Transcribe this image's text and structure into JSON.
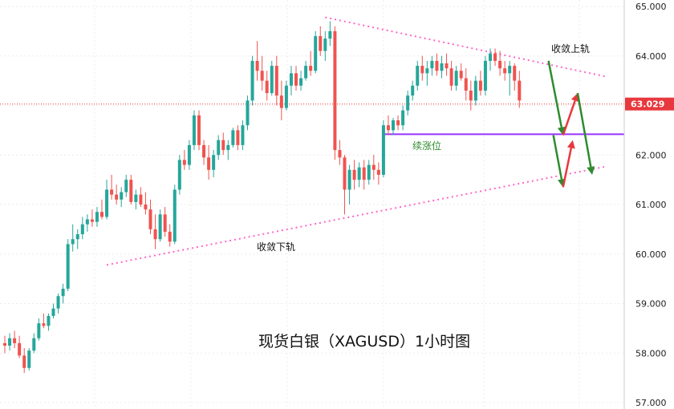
{
  "chart_data": {
    "type": "candlestick",
    "title": "现货白银（XAGUSD）1小时图",
    "ylim": [
      57.0,
      65.0
    ],
    "y_ticks": [
      "65.000",
      "64.000",
      "63.000",
      "62.000",
      "61.000",
      "60.000",
      "59.000",
      "58.000",
      "57.000"
    ],
    "y_tick_values": [
      65,
      64,
      63,
      62,
      61,
      60,
      59,
      58,
      57
    ],
    "current_price": 63.029,
    "current_price_label": "63.029",
    "colors": {
      "up": "#26a69a",
      "down": "#ef5350",
      "trendline": "#ff66c4",
      "support_line": "#9933ff",
      "arrow_up": "#e8383d",
      "arrow_down": "#2e8b2e",
      "price_tag": "#e8383d"
    },
    "annotations": {
      "upper_rail": "收敛上轨",
      "lower_rail": "收敛下轨",
      "continuation": "续涨位"
    },
    "trendlines": [
      {
        "name": "upper",
        "from": {
          "i": 66,
          "price": 64.78
        },
        "to": {
          "i": 124,
          "price": 63.58
        }
      },
      {
        "name": "lower",
        "from": {
          "i": 21,
          "price": 59.78
        },
        "to": {
          "i": 124,
          "price": 61.77
        }
      }
    ],
    "support_level": 62.42,
    "support_from_i": 78,
    "candles": [
      {
        "o": 58.2,
        "h": 58.35,
        "l": 58.0,
        "c": 58.15
      },
      {
        "o": 58.15,
        "h": 58.4,
        "l": 58.05,
        "c": 58.3
      },
      {
        "o": 58.3,
        "h": 58.45,
        "l": 58.1,
        "c": 58.2
      },
      {
        "o": 58.2,
        "h": 58.35,
        "l": 57.9,
        "c": 57.95
      },
      {
        "o": 57.95,
        "h": 58.1,
        "l": 57.6,
        "c": 57.7
      },
      {
        "o": 57.7,
        "h": 58.1,
        "l": 57.65,
        "c": 58.05
      },
      {
        "o": 58.05,
        "h": 58.4,
        "l": 58.0,
        "c": 58.3
      },
      {
        "o": 58.3,
        "h": 58.7,
        "l": 58.25,
        "c": 58.6
      },
      {
        "o": 58.6,
        "h": 58.8,
        "l": 58.5,
        "c": 58.55
      },
      {
        "o": 58.55,
        "h": 58.8,
        "l": 58.45,
        "c": 58.75
      },
      {
        "o": 58.75,
        "h": 59.0,
        "l": 58.7,
        "c": 58.9
      },
      {
        "o": 58.9,
        "h": 59.2,
        "l": 58.8,
        "c": 59.15
      },
      {
        "o": 59.15,
        "h": 59.4,
        "l": 59.0,
        "c": 59.3
      },
      {
        "o": 59.3,
        "h": 60.3,
        "l": 59.25,
        "c": 60.2
      },
      {
        "o": 60.2,
        "h": 60.6,
        "l": 60.05,
        "c": 60.3
      },
      {
        "o": 60.3,
        "h": 60.5,
        "l": 60.1,
        "c": 60.4
      },
      {
        "o": 60.4,
        "h": 60.75,
        "l": 60.3,
        "c": 60.6
      },
      {
        "o": 60.6,
        "h": 60.8,
        "l": 60.45,
        "c": 60.7
      },
      {
        "o": 60.7,
        "h": 60.9,
        "l": 60.55,
        "c": 60.65
      },
      {
        "o": 60.65,
        "h": 60.95,
        "l": 60.55,
        "c": 60.85
      },
      {
        "o": 60.85,
        "h": 61.1,
        "l": 60.7,
        "c": 60.75
      },
      {
        "o": 60.75,
        "h": 61.5,
        "l": 60.7,
        "c": 61.3
      },
      {
        "o": 61.3,
        "h": 61.6,
        "l": 61.1,
        "c": 61.2
      },
      {
        "o": 61.2,
        "h": 61.4,
        "l": 61.0,
        "c": 61.1
      },
      {
        "o": 61.1,
        "h": 61.35,
        "l": 60.95,
        "c": 61.25
      },
      {
        "o": 61.25,
        "h": 61.6,
        "l": 61.15,
        "c": 61.5
      },
      {
        "o": 61.5,
        "h": 61.6,
        "l": 61.0,
        "c": 61.05
      },
      {
        "o": 61.05,
        "h": 61.3,
        "l": 60.9,
        "c": 61.2
      },
      {
        "o": 61.2,
        "h": 61.35,
        "l": 60.95,
        "c": 61.0
      },
      {
        "o": 61.0,
        "h": 61.25,
        "l": 60.8,
        "c": 60.9
      },
      {
        "o": 60.9,
        "h": 61.1,
        "l": 60.4,
        "c": 60.5
      },
      {
        "o": 60.5,
        "h": 60.8,
        "l": 60.1,
        "c": 60.3
      },
      {
        "o": 60.3,
        "h": 60.9,
        "l": 60.25,
        "c": 60.8
      },
      {
        "o": 60.8,
        "h": 60.95,
        "l": 60.35,
        "c": 60.45
      },
      {
        "o": 60.45,
        "h": 60.6,
        "l": 60.15,
        "c": 60.25
      },
      {
        "o": 60.25,
        "h": 61.4,
        "l": 60.2,
        "c": 61.3
      },
      {
        "o": 61.3,
        "h": 62.0,
        "l": 61.2,
        "c": 61.9
      },
      {
        "o": 61.9,
        "h": 62.1,
        "l": 61.7,
        "c": 61.8
      },
      {
        "o": 61.8,
        "h": 62.3,
        "l": 61.7,
        "c": 62.2
      },
      {
        "o": 62.2,
        "h": 62.9,
        "l": 62.1,
        "c": 62.8
      },
      {
        "o": 62.8,
        "h": 62.9,
        "l": 62.1,
        "c": 62.2
      },
      {
        "o": 62.2,
        "h": 62.3,
        "l": 61.8,
        "c": 61.95
      },
      {
        "o": 61.95,
        "h": 62.2,
        "l": 61.5,
        "c": 61.7
      },
      {
        "o": 61.7,
        "h": 62.1,
        "l": 61.55,
        "c": 62.0
      },
      {
        "o": 62.0,
        "h": 62.4,
        "l": 61.9,
        "c": 62.3
      },
      {
        "o": 62.3,
        "h": 62.45,
        "l": 62.0,
        "c": 62.1
      },
      {
        "o": 62.1,
        "h": 62.3,
        "l": 61.9,
        "c": 62.2
      },
      {
        "o": 62.2,
        "h": 62.55,
        "l": 62.15,
        "c": 62.5
      },
      {
        "o": 62.5,
        "h": 62.6,
        "l": 62.1,
        "c": 62.2
      },
      {
        "o": 62.2,
        "h": 62.7,
        "l": 62.1,
        "c": 62.6
      },
      {
        "o": 62.6,
        "h": 63.2,
        "l": 62.5,
        "c": 63.1
      },
      {
        "o": 63.1,
        "h": 64.0,
        "l": 63.0,
        "c": 63.9
      },
      {
        "o": 63.9,
        "h": 64.3,
        "l": 63.5,
        "c": 63.7
      },
      {
        "o": 63.7,
        "h": 64.0,
        "l": 63.3,
        "c": 63.5
      },
      {
        "o": 63.5,
        "h": 63.7,
        "l": 63.1,
        "c": 63.25
      },
      {
        "o": 63.25,
        "h": 63.9,
        "l": 63.2,
        "c": 63.8
      },
      {
        "o": 63.8,
        "h": 64.0,
        "l": 63.0,
        "c": 63.2
      },
      {
        "o": 63.2,
        "h": 63.5,
        "l": 62.7,
        "c": 62.95
      },
      {
        "o": 62.95,
        "h": 63.5,
        "l": 62.9,
        "c": 63.4
      },
      {
        "o": 63.4,
        "h": 63.8,
        "l": 63.2,
        "c": 63.65
      },
      {
        "o": 63.65,
        "h": 63.8,
        "l": 63.3,
        "c": 63.4
      },
      {
        "o": 63.4,
        "h": 63.7,
        "l": 63.3,
        "c": 63.55
      },
      {
        "o": 63.55,
        "h": 63.9,
        "l": 63.5,
        "c": 63.8
      },
      {
        "o": 63.8,
        "h": 64.1,
        "l": 63.6,
        "c": 63.7
      },
      {
        "o": 63.7,
        "h": 64.5,
        "l": 63.65,
        "c": 64.4
      },
      {
        "o": 64.4,
        "h": 64.6,
        "l": 64.0,
        "c": 64.1
      },
      {
        "o": 64.1,
        "h": 64.5,
        "l": 63.9,
        "c": 64.35
      },
      {
        "o": 64.35,
        "h": 64.7,
        "l": 64.2,
        "c": 64.5
      },
      {
        "o": 64.5,
        "h": 64.6,
        "l": 61.9,
        "c": 62.1
      },
      {
        "o": 62.1,
        "h": 62.3,
        "l": 61.8,
        "c": 61.95
      },
      {
        "o": 61.95,
        "h": 62.0,
        "l": 60.8,
        "c": 61.3
      },
      {
        "o": 61.3,
        "h": 61.8,
        "l": 61.0,
        "c": 61.7
      },
      {
        "o": 61.7,
        "h": 61.9,
        "l": 61.3,
        "c": 61.5
      },
      {
        "o": 61.5,
        "h": 61.85,
        "l": 61.35,
        "c": 61.75
      },
      {
        "o": 61.75,
        "h": 61.9,
        "l": 61.3,
        "c": 61.5
      },
      {
        "o": 61.5,
        "h": 61.9,
        "l": 61.4,
        "c": 61.8
      },
      {
        "o": 61.8,
        "h": 62.0,
        "l": 61.5,
        "c": 61.7
      },
      {
        "o": 61.7,
        "h": 61.85,
        "l": 61.4,
        "c": 61.6
      },
      {
        "o": 61.6,
        "h": 62.7,
        "l": 61.55,
        "c": 62.6
      },
      {
        "o": 62.6,
        "h": 62.8,
        "l": 62.4,
        "c": 62.5
      },
      {
        "o": 62.5,
        "h": 62.75,
        "l": 62.4,
        "c": 62.7
      },
      {
        "o": 62.7,
        "h": 62.8,
        "l": 62.5,
        "c": 62.6
      },
      {
        "o": 62.6,
        "h": 63.0,
        "l": 62.5,
        "c": 62.9
      },
      {
        "o": 62.9,
        "h": 63.3,
        "l": 62.8,
        "c": 63.2
      },
      {
        "o": 63.2,
        "h": 63.5,
        "l": 63.1,
        "c": 63.4
      },
      {
        "o": 63.4,
        "h": 63.9,
        "l": 63.3,
        "c": 63.8
      },
      {
        "o": 63.8,
        "h": 64.0,
        "l": 63.5,
        "c": 63.65
      },
      {
        "o": 63.65,
        "h": 63.9,
        "l": 63.4,
        "c": 63.75
      },
      {
        "o": 63.75,
        "h": 64.0,
        "l": 63.6,
        "c": 63.9
      },
      {
        "o": 63.9,
        "h": 64.05,
        "l": 63.6,
        "c": 63.7
      },
      {
        "o": 63.7,
        "h": 64.0,
        "l": 63.55,
        "c": 63.85
      },
      {
        "o": 63.85,
        "h": 64.05,
        "l": 63.6,
        "c": 63.75
      },
      {
        "o": 63.75,
        "h": 63.9,
        "l": 63.3,
        "c": 63.4
      },
      {
        "o": 63.4,
        "h": 63.8,
        "l": 63.3,
        "c": 63.7
      },
      {
        "o": 63.7,
        "h": 63.85,
        "l": 63.5,
        "c": 63.55
      },
      {
        "o": 63.55,
        "h": 63.75,
        "l": 63.1,
        "c": 63.3
      },
      {
        "o": 63.3,
        "h": 63.5,
        "l": 62.9,
        "c": 63.1
      },
      {
        "o": 63.1,
        "h": 63.6,
        "l": 63.0,
        "c": 63.5
      },
      {
        "o": 63.5,
        "h": 63.7,
        "l": 63.2,
        "c": 63.3
      },
      {
        "o": 63.3,
        "h": 64.0,
        "l": 63.2,
        "c": 63.9
      },
      {
        "o": 63.9,
        "h": 64.15,
        "l": 63.7,
        "c": 64.05
      },
      {
        "o": 64.05,
        "h": 64.15,
        "l": 63.8,
        "c": 63.9
      },
      {
        "o": 63.9,
        "h": 64.1,
        "l": 63.6,
        "c": 63.75
      },
      {
        "o": 63.75,
        "h": 63.9,
        "l": 63.5,
        "c": 63.65
      },
      {
        "o": 63.65,
        "h": 63.9,
        "l": 63.2,
        "c": 63.8
      },
      {
        "o": 63.8,
        "h": 63.85,
        "l": 63.3,
        "c": 63.5
      },
      {
        "o": 63.5,
        "h": 63.7,
        "l": 62.95,
        "c": 63.1
      }
    ],
    "projection_arrows": [
      {
        "direction": "down",
        "from": {
          "i": 112,
          "price": 63.9
        },
        "to": {
          "i": 115,
          "price": 62.4
        }
      },
      {
        "direction": "up",
        "from": {
          "i": 115,
          "price": 62.4
        },
        "to": {
          "i": 118,
          "price": 63.25
        }
      },
      {
        "direction": "down",
        "from": {
          "i": 118,
          "price": 63.25
        },
        "to": {
          "i": 121,
          "price": 61.6
        }
      },
      {
        "direction": "down",
        "from": {
          "i": 113,
          "price": 62.4
        },
        "to": {
          "i": 115,
          "price": 61.35
        }
      },
      {
        "direction": "up",
        "from": {
          "i": 115,
          "price": 61.35
        },
        "to": {
          "i": 117,
          "price": 62.3
        }
      }
    ]
  }
}
